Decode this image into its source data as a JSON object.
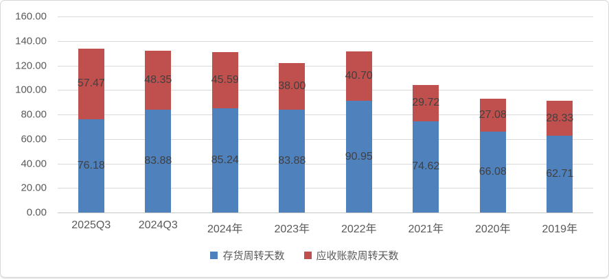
{
  "chart_data": {
    "type": "bar",
    "stacked": true,
    "title": "",
    "xlabel": "",
    "ylabel": "",
    "grid": true,
    "legend_position": "bottom",
    "ylim": [
      0,
      160
    ],
    "y_tick_step": 20,
    "y_ticks": [
      "160.00",
      "140.00",
      "120.00",
      "100.00",
      "80.00",
      "60.00",
      "40.00",
      "20.00",
      "0.00"
    ],
    "categories": [
      "2025Q3",
      "2024Q3",
      "2024年",
      "2023年",
      "2022年",
      "2021年",
      "2020年",
      "2019年"
    ],
    "series": [
      {
        "key": "inventory-turnover-days",
        "name": "存货周转天数",
        "color": "#4F81BD",
        "values": [
          76.18,
          83.88,
          85.24,
          83.88,
          90.95,
          74.62,
          66.08,
          62.71
        ],
        "labels": [
          "76.18",
          "83.88",
          "85.24",
          "83.88",
          "90.95",
          "74.62",
          "66.08",
          "62.71"
        ]
      },
      {
        "key": "receivables-turnover-days",
        "name": "应收账款周转天数",
        "color": "#C0504D",
        "values": [
          57.47,
          48.35,
          45.59,
          38.0,
          40.7,
          29.72,
          27.08,
          28.33
        ],
        "labels": [
          "57.47",
          "48.35",
          "45.59",
          "38.00",
          "40.70",
          "29.72",
          "27.08",
          "28.33"
        ]
      }
    ]
  },
  "colors": {
    "background": "#FFFFFF",
    "border": "#D6D6D6",
    "gridline": "#D9D9D9",
    "axis_text": "#595959",
    "data_label_text": "#404040"
  }
}
